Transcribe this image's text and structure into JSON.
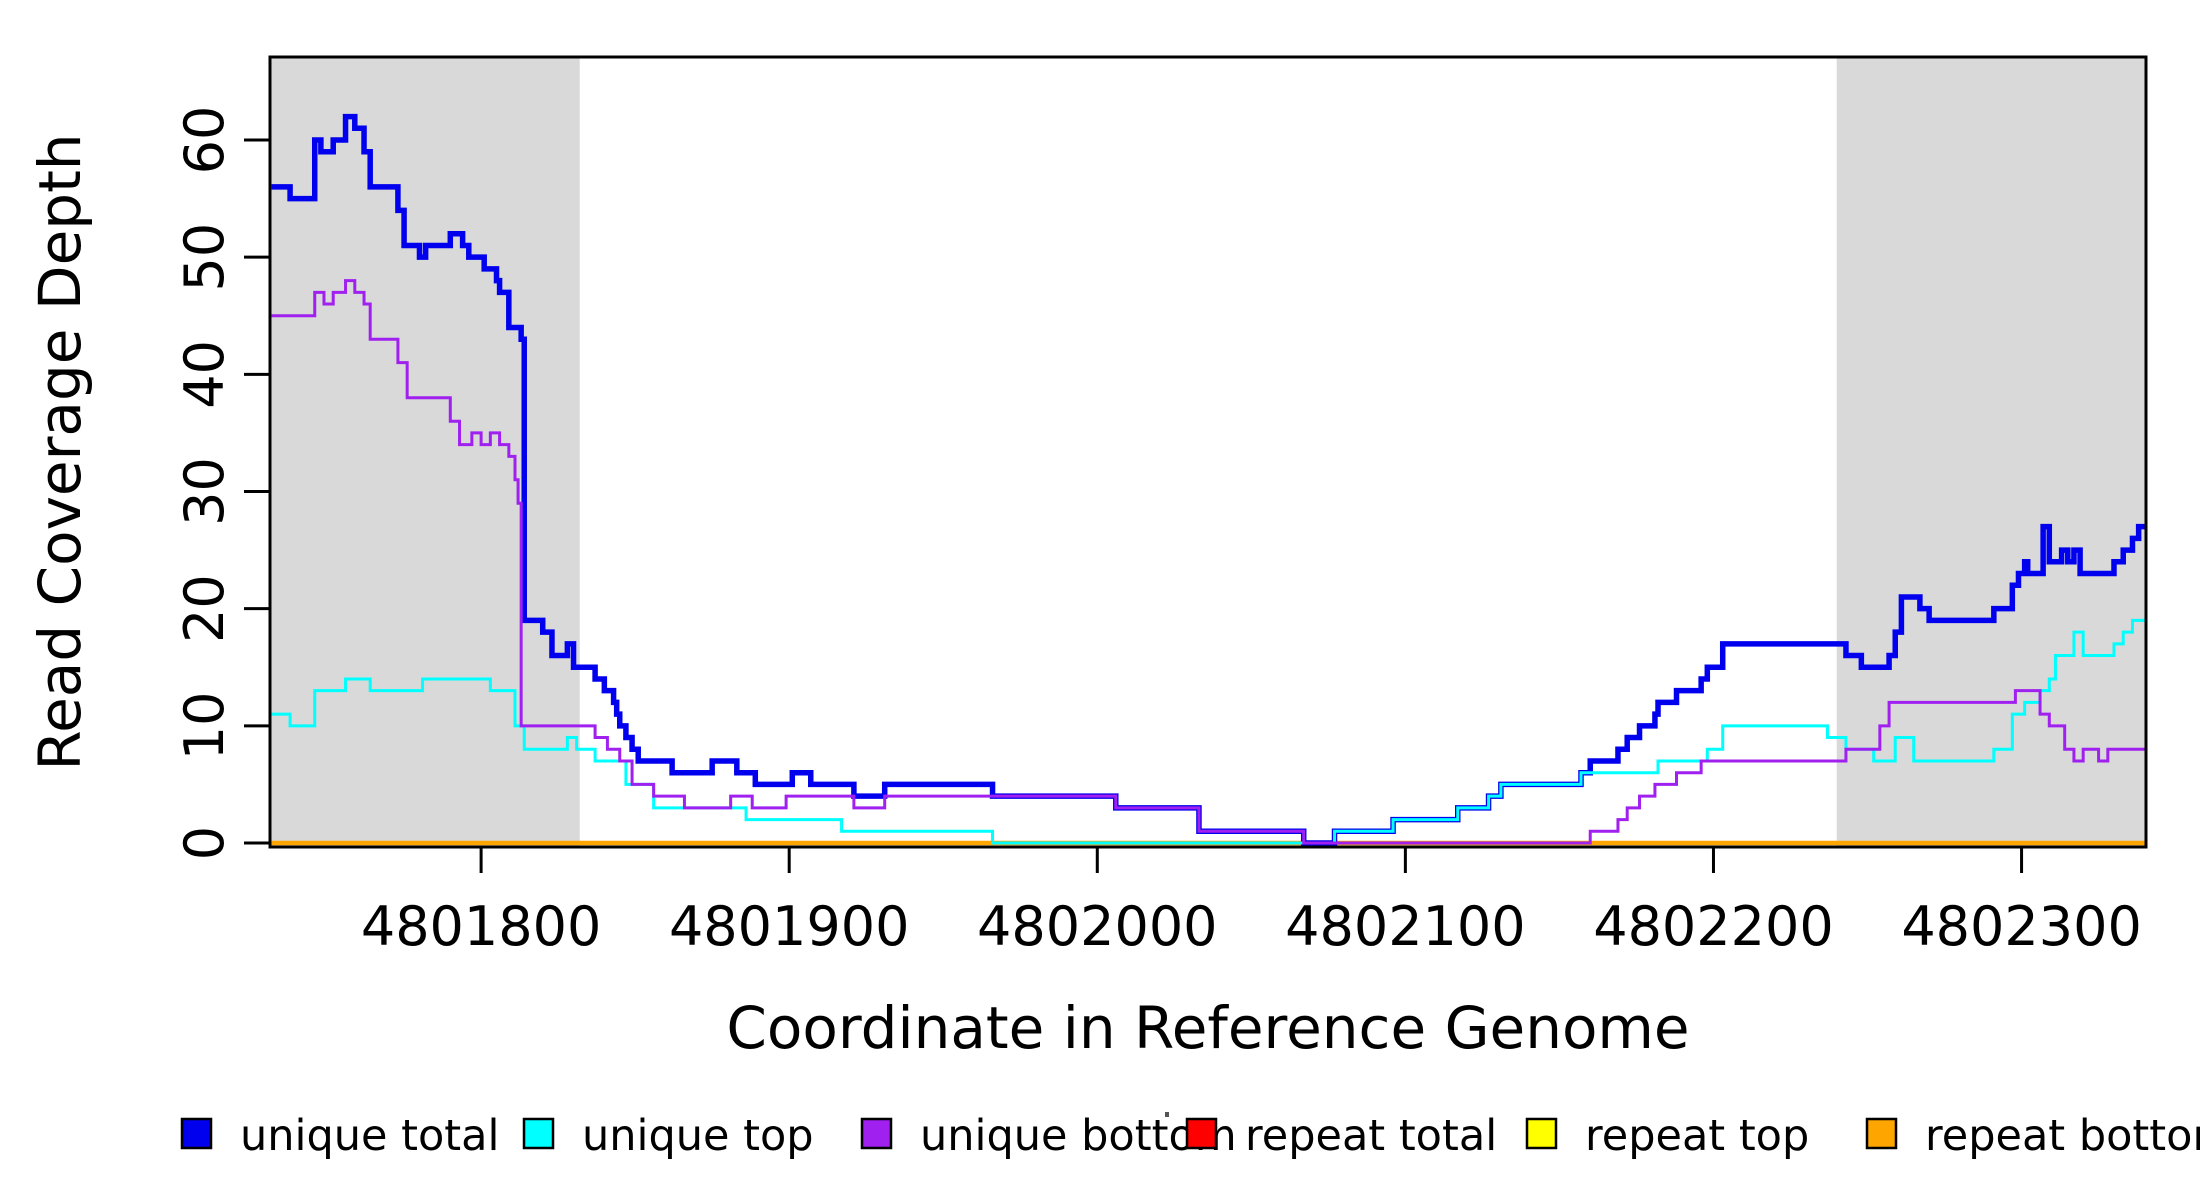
{
  "chart_data": {
    "type": "line",
    "title": "",
    "xlabel": "Coordinate in Reference Genome",
    "ylabel": "Read Coverage Depth",
    "xlim": [
      4801732,
      4802340
    ],
    "ylim": [
      0,
      67
    ],
    "x_ticks": [
      4801800,
      4801900,
      4802000,
      4802100,
      4802200,
      4802300
    ],
    "y_ticks": [
      0,
      10,
      20,
      30,
      40,
      50,
      60
    ],
    "grid": false,
    "legend_position": "bottom",
    "background_color": "#FFFFFF",
    "shade_color": "#D9D9D9",
    "shaded_regions": [
      [
        4801732,
        4801832
      ],
      [
        4802240,
        4802340
      ]
    ],
    "series": [
      {
        "name": "unique total",
        "color": "#0000EE",
        "width": 5.5,
        "steps": [
          [
            4801732,
            56
          ],
          [
            4801738,
            55
          ],
          [
            4801746,
            60
          ],
          [
            4801748,
            59
          ],
          [
            4801752,
            60
          ],
          [
            4801756,
            62
          ],
          [
            4801759,
            61
          ],
          [
            4801762,
            59
          ],
          [
            4801764,
            56
          ],
          [
            4801773,
            54
          ],
          [
            4801775,
            51
          ],
          [
            4801780,
            50
          ],
          [
            4801782,
            51
          ],
          [
            4801790,
            52
          ],
          [
            4801794,
            51
          ],
          [
            4801796,
            50
          ],
          [
            4801801,
            49
          ],
          [
            4801805,
            48
          ],
          [
            4801806,
            47
          ],
          [
            4801809,
            44
          ],
          [
            4801813,
            43
          ],
          [
            4801814,
            19
          ],
          [
            4801820,
            18
          ],
          [
            4801823,
            16
          ],
          [
            4801828,
            17
          ],
          [
            4801830,
            15
          ],
          [
            4801837,
            14
          ],
          [
            4801840,
            13
          ],
          [
            4801843,
            12
          ],
          [
            4801844,
            11
          ],
          [
            4801845,
            10
          ],
          [
            4801847,
            9
          ],
          [
            4801849,
            8
          ],
          [
            4801851,
            7
          ],
          [
            4801862,
            6
          ],
          [
            4801875,
            7
          ],
          [
            4801883,
            6
          ],
          [
            4801889,
            5
          ],
          [
            4801901,
            6
          ],
          [
            4801907,
            5
          ],
          [
            4801921,
            4
          ],
          [
            4801931,
            5
          ],
          [
            4801966,
            4
          ],
          [
            4802006,
            3
          ],
          [
            4802033,
            1
          ],
          [
            4802067,
            0
          ],
          [
            4802077,
            1
          ],
          [
            4802096,
            2
          ],
          [
            4802117,
            3
          ],
          [
            4802127,
            4
          ],
          [
            4802131,
            5
          ],
          [
            4802157,
            6
          ],
          [
            4802160,
            7
          ],
          [
            4802169,
            8
          ],
          [
            4802172,
            9
          ],
          [
            4802176,
            10
          ],
          [
            4802181,
            11
          ],
          [
            4802182,
            12
          ],
          [
            4802188,
            13
          ],
          [
            4802196,
            14
          ],
          [
            4802198,
            15
          ],
          [
            4802203,
            17
          ],
          [
            4802243,
            16
          ],
          [
            4802248,
            15
          ],
          [
            4802257,
            16
          ],
          [
            4802259,
            18
          ],
          [
            4802261,
            21
          ],
          [
            4802267,
            20
          ],
          [
            4802270,
            19
          ],
          [
            4802291,
            20
          ],
          [
            4802297,
            22
          ],
          [
            4802299,
            23
          ],
          [
            4802301,
            24
          ],
          [
            4802302,
            23
          ],
          [
            4802307,
            27
          ],
          [
            4802309,
            24
          ],
          [
            4802313,
            25
          ],
          [
            4802315,
            24
          ],
          [
            4802317,
            25
          ],
          [
            4802319,
            23
          ],
          [
            4802330,
            24
          ],
          [
            4802333,
            25
          ],
          [
            4802336,
            26
          ],
          [
            4802338,
            27
          ]
        ]
      },
      {
        "name": "unique top",
        "color": "#00FFFF",
        "width": 3,
        "steps": [
          [
            4801732,
            11
          ],
          [
            4801738,
            10
          ],
          [
            4801746,
            13
          ],
          [
            4801756,
            14
          ],
          [
            4801764,
            13
          ],
          [
            4801781,
            14
          ],
          [
            4801803,
            13
          ],
          [
            4801811,
            10
          ],
          [
            4801814,
            8
          ],
          [
            4801828,
            9
          ],
          [
            4801831,
            8
          ],
          [
            4801837,
            7
          ],
          [
            4801847,
            5
          ],
          [
            4801856,
            3
          ],
          [
            4801886,
            2
          ],
          [
            4801917,
            1
          ],
          [
            4801966,
            0
          ],
          [
            4802077,
            1
          ],
          [
            4802096,
            2
          ],
          [
            4802117,
            3
          ],
          [
            4802127,
            4
          ],
          [
            4802131,
            5
          ],
          [
            4802157,
            6
          ],
          [
            4802182,
            7
          ],
          [
            4802198,
            8
          ],
          [
            4802203,
            10
          ],
          [
            4802237,
            9
          ],
          [
            4802243,
            8
          ],
          [
            4802252,
            7
          ],
          [
            4802259,
            9
          ],
          [
            4802265,
            7
          ],
          [
            4802291,
            8
          ],
          [
            4802297,
            11
          ],
          [
            4802301,
            12
          ],
          [
            4802306,
            13
          ],
          [
            4802309,
            14
          ],
          [
            4802311,
            16
          ],
          [
            4802317,
            18
          ],
          [
            4802320,
            16
          ],
          [
            4802330,
            17
          ],
          [
            4802333,
            18
          ],
          [
            4802336,
            19
          ]
        ]
      },
      {
        "name": "unique bottom",
        "color": "#A020F0",
        "width": 3,
        "steps": [
          [
            4801732,
            45
          ],
          [
            4801746,
            47
          ],
          [
            4801749,
            46
          ],
          [
            4801752,
            47
          ],
          [
            4801756,
            48
          ],
          [
            4801759,
            47
          ],
          [
            4801762,
            46
          ],
          [
            4801764,
            43
          ],
          [
            4801773,
            41
          ],
          [
            4801776,
            38
          ],
          [
            4801790,
            36
          ],
          [
            4801793,
            34
          ],
          [
            4801797,
            35
          ],
          [
            4801800,
            34
          ],
          [
            4801803,
            35
          ],
          [
            4801806,
            34
          ],
          [
            4801809,
            33
          ],
          [
            4801811,
            31
          ],
          [
            4801812,
            29
          ],
          [
            4801813,
            10
          ],
          [
            4801837,
            9
          ],
          [
            4801841,
            8
          ],
          [
            4801845,
            7
          ],
          [
            4801849,
            5
          ],
          [
            4801856,
            4
          ],
          [
            4801866,
            3
          ],
          [
            4801881,
            4
          ],
          [
            4801888,
            3
          ],
          [
            4801899,
            4
          ],
          [
            4801921,
            3
          ],
          [
            4801931,
            4
          ],
          [
            4802006,
            3
          ],
          [
            4802033,
            1
          ],
          [
            4802067,
            0
          ],
          [
            4802160,
            1
          ],
          [
            4802169,
            2
          ],
          [
            4802172,
            3
          ],
          [
            4802176,
            4
          ],
          [
            4802181,
            5
          ],
          [
            4802188,
            6
          ],
          [
            4802196,
            7
          ],
          [
            4802243,
            8
          ],
          [
            4802254,
            10
          ],
          [
            4802257,
            12
          ],
          [
            4802298,
            13
          ],
          [
            4802306,
            11
          ],
          [
            4802309,
            10
          ],
          [
            4802314,
            8
          ],
          [
            4802317,
            7
          ],
          [
            4802320,
            8
          ],
          [
            4802325,
            7
          ],
          [
            4802328,
            8
          ]
        ]
      },
      {
        "name": "repeat total",
        "color": "#FF0000",
        "width": 3,
        "steps": [
          [
            4801732,
            0
          ]
        ]
      },
      {
        "name": "repeat top",
        "color": "#FFFF00",
        "width": 3,
        "steps": [
          [
            4801732,
            0
          ]
        ]
      },
      {
        "name": "repeat bottom",
        "color": "#FFA500",
        "width": 4.5,
        "steps": [
          [
            4801732,
            0
          ]
        ]
      }
    ]
  }
}
